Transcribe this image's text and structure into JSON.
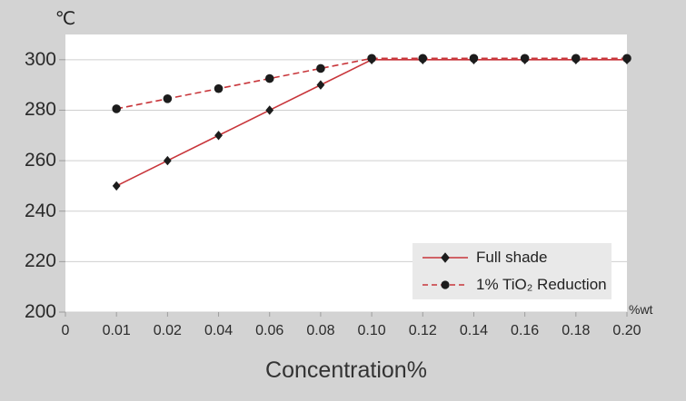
{
  "chart_data": {
    "type": "line",
    "title": "",
    "y_axis_label": "℃",
    "x_axis_label": "Concentration%",
    "x_unit_label": "%wt",
    "categories": [
      "0",
      "0.01",
      "0.02",
      "0.04",
      "0.06",
      "0.08",
      "0.10",
      "0.12",
      "0.14",
      "0.16",
      "0.18",
      "0.20"
    ],
    "y_ticks": [
      200,
      220,
      240,
      260,
      280,
      300
    ],
    "ylim": [
      200,
      310
    ],
    "grid": true,
    "legend_position": "inside-bottom-right",
    "colors": {
      "background": "#d3d3d3",
      "plot_background": "#ffffff",
      "gridline": "#cfcfcf",
      "tick": "#9d9d9d",
      "line": "#c8353a",
      "marker": "#1c1c1c",
      "legend_background": "#e9e9e9"
    },
    "series": [
      {
        "name": "Full shade",
        "line_style": "solid",
        "marker": "diamond",
        "x": [
          "0.01",
          "0.02",
          "0.04",
          "0.06",
          "0.08",
          "0.10",
          "0.12",
          "0.14",
          "0.16",
          "0.18",
          "0.20"
        ],
        "values": [
          250,
          260,
          270,
          280,
          290,
          300,
          300,
          300,
          300,
          300,
          300
        ]
      },
      {
        "name": "1% TiO₂ Reduction",
        "line_style": "dashed",
        "marker": "circle",
        "x": [
          "0.01",
          "0.02",
          "0.04",
          "0.06",
          "0.08",
          "0.10",
          "0.12",
          "0.14",
          "0.16",
          "0.18",
          "0.20"
        ],
        "values": [
          280,
          284,
          288,
          292,
          296,
          300,
          300,
          300,
          300,
          300,
          300
        ]
      }
    ]
  }
}
